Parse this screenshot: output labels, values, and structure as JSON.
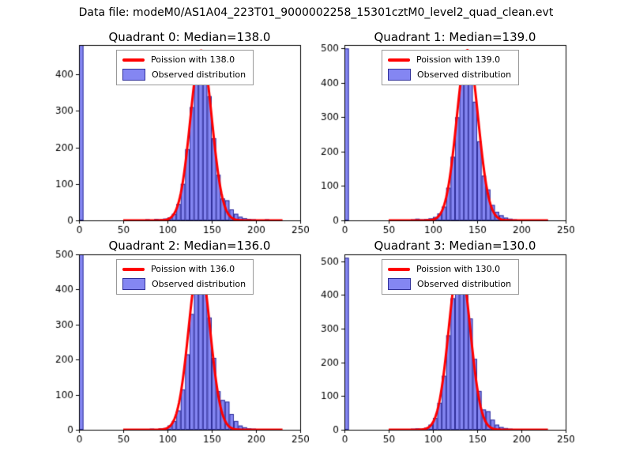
{
  "suptitle": "Data file: modeM0/AS1A04_223T01_9000002258_15301cztM0_level2_quad_clean.evt",
  "colors": {
    "bar_fill": "#8486f2",
    "bar_edge": "#30309a",
    "curve": "#ff0000",
    "axis": "#000000",
    "legend_border": "#999999"
  },
  "chart_data": [
    {
      "type": "bar",
      "title": "Quadrant 0: Median=138.0",
      "legend": [
        "Poission with 138.0",
        "Observed distribution"
      ],
      "xlim": [
        0,
        250
      ],
      "ylim": [
        0,
        480
      ],
      "xticks": [
        0,
        50,
        100,
        150,
        200,
        250
      ],
      "yticks": [
        0,
        100,
        200,
        300,
        400
      ],
      "bin_width": 5,
      "counts": [
        480,
        0,
        0,
        0,
        0,
        0,
        0,
        0,
        0,
        0,
        0,
        0,
        0,
        0,
        0,
        3,
        2,
        4,
        3,
        5,
        8,
        18,
        45,
        100,
        195,
        310,
        415,
        455,
        430,
        340,
        225,
        125,
        60,
        55,
        30,
        18,
        10,
        6,
        4,
        3,
        2,
        2,
        3,
        0,
        0,
        0,
        0,
        0,
        0,
        0
      ],
      "curve": {
        "shape": "gaussian",
        "mu": 138,
        "sigma": 12,
        "amplitude": 465,
        "x_range": [
          50,
          230
        ]
      }
    },
    {
      "type": "bar",
      "title": "Quadrant 1: Median=139.0",
      "legend": [
        "Poission with 139.0",
        "Observed distribution"
      ],
      "xlim": [
        0,
        250
      ],
      "ylim": [
        0,
        510
      ],
      "xticks": [
        0,
        50,
        100,
        150,
        200,
        250
      ],
      "yticks": [
        0,
        100,
        200,
        300,
        400,
        500
      ],
      "bin_width": 5,
      "counts": [
        500,
        0,
        0,
        0,
        0,
        0,
        0,
        0,
        0,
        0,
        0,
        0,
        0,
        0,
        2,
        3,
        5,
        3,
        4,
        6,
        10,
        20,
        40,
        95,
        185,
        300,
        400,
        480,
        450,
        345,
        230,
        130,
        90,
        45,
        25,
        15,
        8,
        5,
        3,
        2,
        2,
        1,
        1,
        2,
        1,
        2,
        0,
        0,
        0,
        0
      ],
      "curve": {
        "shape": "gaussian",
        "mu": 139,
        "sigma": 12,
        "amplitude": 495,
        "x_range": [
          50,
          230
        ]
      }
    },
    {
      "type": "bar",
      "title": "Quadrant 2: Median=136.0",
      "legend": [
        "Poission with 136.0",
        "Observed distribution"
      ],
      "xlim": [
        0,
        250
      ],
      "ylim": [
        0,
        500
      ],
      "xticks": [
        0,
        50,
        100,
        150,
        200,
        250
      ],
      "yticks": [
        0,
        100,
        200,
        300,
        400,
        500
      ],
      "bin_width": 5,
      "counts": [
        500,
        0,
        0,
        0,
        0,
        0,
        0,
        0,
        0,
        0,
        0,
        0,
        0,
        0,
        0,
        2,
        3,
        2,
        4,
        5,
        12,
        25,
        55,
        115,
        215,
        330,
        430,
        465,
        420,
        320,
        205,
        110,
        85,
        80,
        45,
        25,
        12,
        7,
        4,
        3,
        2,
        2,
        0,
        0,
        0,
        0,
        0,
        0,
        0,
        0
      ],
      "curve": {
        "shape": "gaussian",
        "mu": 136,
        "sigma": 12,
        "amplitude": 480,
        "x_range": [
          50,
          230
        ]
      }
    },
    {
      "type": "bar",
      "title": "Quadrant 3: Median=130.0",
      "legend": [
        "Poission with 130.0",
        "Observed distribution"
      ],
      "xlim": [
        0,
        250
      ],
      "ylim": [
        0,
        520
      ],
      "xticks": [
        0,
        50,
        100,
        150,
        200,
        250
      ],
      "yticks": [
        0,
        100,
        200,
        300,
        400,
        500
      ],
      "bin_width": 5,
      "counts": [
        510,
        0,
        0,
        0,
        0,
        0,
        0,
        0,
        0,
        0,
        0,
        0,
        0,
        0,
        2,
        3,
        4,
        3,
        6,
        15,
        35,
        80,
        160,
        280,
        390,
        470,
        490,
        430,
        330,
        210,
        115,
        60,
        55,
        30,
        15,
        8,
        5,
        3,
        2,
        2,
        1,
        2,
        0,
        0,
        0,
        0,
        0,
        0,
        0,
        0
      ],
      "curve": {
        "shape": "gaussian",
        "mu": 130,
        "sigma": 12,
        "amplitude": 500,
        "x_range": [
          50,
          230
        ]
      }
    }
  ]
}
